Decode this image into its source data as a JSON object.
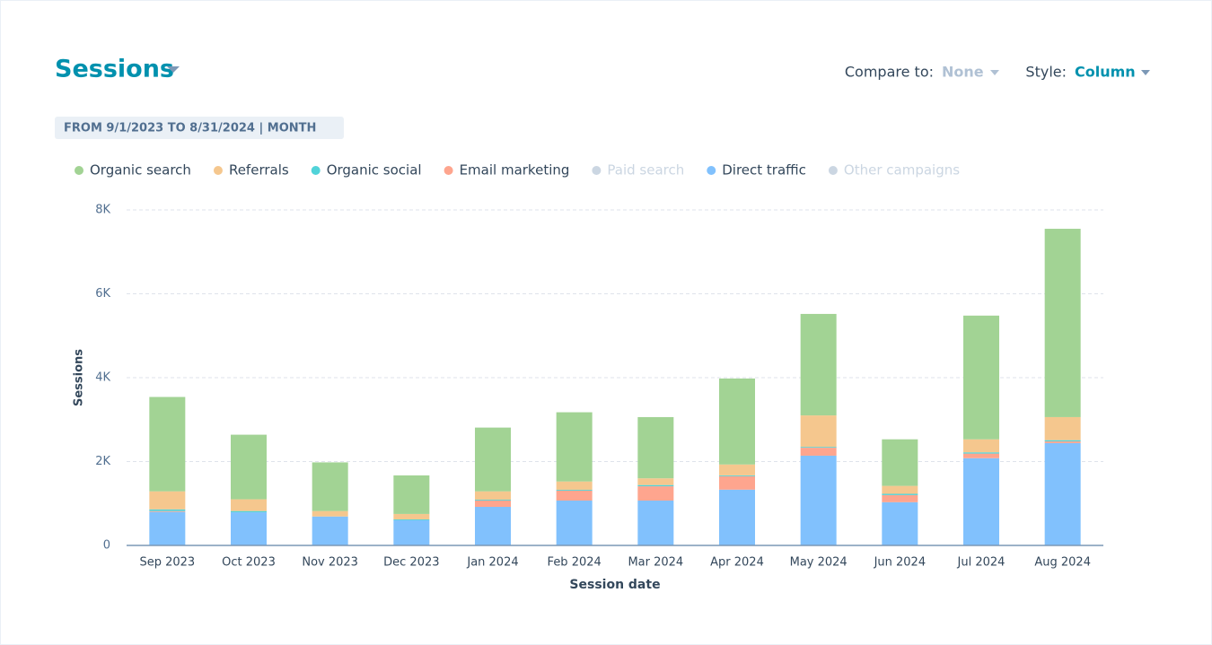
{
  "header": {
    "title": "Sessions",
    "compare_label": "Compare to:",
    "compare_value": "None",
    "style_label": "Style:",
    "style_value": "Column",
    "range": "FROM 9/1/2023 TO 8/31/2024 | MONTH"
  },
  "chart_data": {
    "type": "stacked_bar",
    "x_label": "Session date",
    "y_label": "Sessions",
    "categories": [
      "Sep 2023",
      "Oct 2023",
      "Nov 2023",
      "Dec 2023",
      "Jan 2024",
      "Feb 2024",
      "Mar 2024",
      "Apr 2024",
      "May 2024",
      "Jun 2024",
      "Jul 2024",
      "Aug 2024"
    ],
    "series": [
      {
        "name": "Organic search",
        "color": "#a2d394",
        "values": [
          2250,
          1540,
          1160,
          920,
          1520,
          1650,
          1460,
          2050,
          2420,
          1110,
          2950,
          4490
        ]
      },
      {
        "name": "Referrals",
        "color": "#f5c78e",
        "values": [
          430,
          280,
          130,
          130,
          200,
          200,
          160,
          260,
          750,
          190,
          310,
          550
        ]
      },
      {
        "name": "Organic social",
        "color": "#51d3d9",
        "values": [
          40,
          30,
          0,
          20,
          20,
          20,
          30,
          20,
          20,
          30,
          30,
          30
        ]
      },
      {
        "name": "Email marketing",
        "color": "#fea58e",
        "values": [
          20,
          0,
          0,
          0,
          150,
          235,
          340,
          320,
          190,
          170,
          110,
          40
        ]
      },
      {
        "name": "Paid search",
        "color": "#cbd6e2",
        "hidden": true
      },
      {
        "name": "Direct traffic",
        "color": "#81c1fd",
        "values": [
          800,
          790,
          690,
          600,
          920,
          1070,
          1070,
          1330,
          2140,
          1030,
          2080,
          2440
        ]
      },
      {
        "name": "Other campaigns",
        "color": "#cbd6e2",
        "hidden": true
      }
    ],
    "stack_order": [
      "Direct traffic",
      "Email marketing",
      "Organic social",
      "Referrals",
      "Organic search"
    ],
    "ylim": [
      0,
      8000
    ],
    "yticks": [
      0,
      {
        "value": 2000,
        "label": "2K"
      },
      {
        "value": 4000,
        "label": "4K"
      },
      {
        "value": 6000,
        "label": "6K"
      },
      {
        "value": 8000,
        "label": "8K"
      }
    ],
    "grid": true
  }
}
